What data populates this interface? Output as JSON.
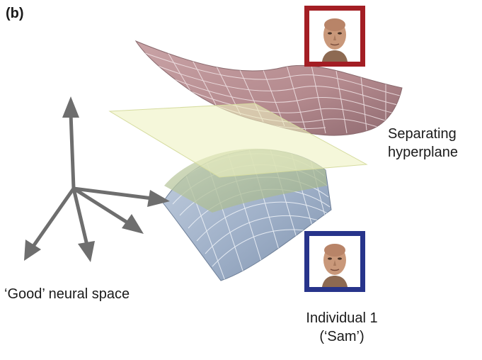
{
  "panel_label": "(b)",
  "labels": {
    "separating_line1": "Separating",
    "separating_line2": "hyperplane",
    "good_space": "‘Good’ neural space",
    "individual_line1": "Individual 1",
    "individual_line2": "(‘Sam’)"
  },
  "colors": {
    "top_frame": "#a31e24",
    "bottom_frame": "#27348b",
    "top_surface": "#b58a8e",
    "bottom_surface": "#9fb0c8",
    "hyperplane": "#eef2c2",
    "axis_arrows": "#6e6e6e"
  },
  "icons": [
    "face-portrait-icon",
    "face-portrait-icon"
  ]
}
